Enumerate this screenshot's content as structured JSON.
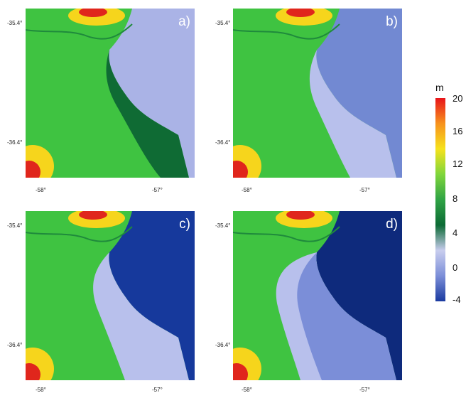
{
  "panels": [
    {
      "label": "a)",
      "sea": "#aab3e6"
    },
    {
      "label": "b)",
      "sea": "#7289d2"
    },
    {
      "label": "c)",
      "sea": "#16399c"
    },
    {
      "label": "d)",
      "sea": "#0e2a7c"
    }
  ],
  "axes": {
    "lat_top": "-35.4°",
    "lat_bottom": "-36.4°",
    "lon_left": "-58°",
    "lon_right": "-57°"
  },
  "colorbar": {
    "unit": "m",
    "ticks": [
      "20",
      "16",
      "12",
      "8",
      "4",
      "0",
      "-4"
    ],
    "colors": [
      "#e8141a",
      "#f7921d",
      "#f6e21c",
      "#7fd63b",
      "#2fa345",
      "#0c6a35",
      "#c8cdee",
      "#7b8ed8",
      "#1a3aa0"
    ]
  },
  "legend_colors": {
    "land_high": "#e0261c",
    "land_mid": "#f6d51c",
    "land_green": "#3fc341",
    "land_low": "#1f8a3c",
    "lowland": "#0f6b34",
    "flood": "#b8c0ec"
  }
}
